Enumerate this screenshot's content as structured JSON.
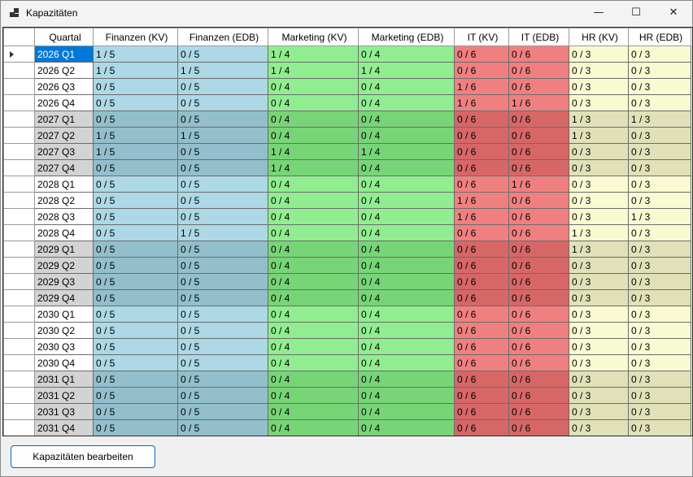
{
  "window": {
    "title": "Kapazitäten"
  },
  "titlebar": {
    "minimize_glyph": "—",
    "maximize_glyph": "☐",
    "close_glyph": "✕"
  },
  "grid": {
    "columns": [
      "Quartal",
      "Finanzen (KV)",
      "Finanzen (EDB)",
      "Marketing (KV)",
      "Marketing (EDB)",
      "IT (KV)",
      "IT (EDB)",
      "HR (KV)",
      "HR (EDB)"
    ],
    "colors": {
      "finanzen": "#add8e6",
      "finanzen_dark": "#93bfcc",
      "marketing": "#90ee90",
      "marketing_dark": "#77d577",
      "it": "#f08080",
      "it_dark": "#d76767",
      "hr": "#fafad2",
      "hr_dark": "#e1e1b9",
      "quartal_dark": "#d3d3d3",
      "selected": "#0078d7"
    },
    "selected_row": 0,
    "rows": [
      {
        "quartal": "2026 Q1",
        "cells": [
          "1 / 5",
          "0 / 5",
          "1 / 4",
          "0 / 4",
          "0 / 6",
          "0 / 6",
          "0 / 3",
          "0 / 3"
        ]
      },
      {
        "quartal": "2026 Q2",
        "cells": [
          "1 / 5",
          "1 / 5",
          "1 / 4",
          "1 / 4",
          "0 / 6",
          "0 / 6",
          "0 / 3",
          "0 / 3"
        ]
      },
      {
        "quartal": "2026 Q3",
        "cells": [
          "0 / 5",
          "0 / 5",
          "0 / 4",
          "0 / 4",
          "1 / 6",
          "0 / 6",
          "0 / 3",
          "0 / 3"
        ]
      },
      {
        "quartal": "2026 Q4",
        "cells": [
          "0 / 5",
          "0 / 5",
          "0 / 4",
          "0 / 4",
          "1 / 6",
          "1 / 6",
          "0 / 3",
          "0 / 3"
        ]
      },
      {
        "quartal": "2027 Q1",
        "cells": [
          "0 / 5",
          "0 / 5",
          "0 / 4",
          "0 / 4",
          "0 / 6",
          "0 / 6",
          "1 / 3",
          "1 / 3"
        ]
      },
      {
        "quartal": "2027 Q2",
        "cells": [
          "1 / 5",
          "1 / 5",
          "0 / 4",
          "0 / 4",
          "0 / 6",
          "0 / 6",
          "1 / 3",
          "0 / 3"
        ]
      },
      {
        "quartal": "2027 Q3",
        "cells": [
          "1 / 5",
          "0 / 5",
          "1 / 4",
          "1 / 4",
          "0 / 6",
          "0 / 6",
          "0 / 3",
          "0 / 3"
        ]
      },
      {
        "quartal": "2027 Q4",
        "cells": [
          "0 / 5",
          "0 / 5",
          "1 / 4",
          "0 / 4",
          "0 / 6",
          "0 / 6",
          "0 / 3",
          "0 / 3"
        ]
      },
      {
        "quartal": "2028 Q1",
        "cells": [
          "0 / 5",
          "0 / 5",
          "0 / 4",
          "0 / 4",
          "0 / 6",
          "1 / 6",
          "0 / 3",
          "0 / 3"
        ]
      },
      {
        "quartal": "2028 Q2",
        "cells": [
          "0 / 5",
          "0 / 5",
          "0 / 4",
          "0 / 4",
          "1 / 6",
          "0 / 6",
          "0 / 3",
          "0 / 3"
        ]
      },
      {
        "quartal": "2028 Q3",
        "cells": [
          "0 / 5",
          "0 / 5",
          "0 / 4",
          "0 / 4",
          "1 / 6",
          "0 / 6",
          "0 / 3",
          "1 / 3"
        ]
      },
      {
        "quartal": "2028 Q4",
        "cells": [
          "0 / 5",
          "1 / 5",
          "0 / 4",
          "0 / 4",
          "0 / 6",
          "0 / 6",
          "1 / 3",
          "0 / 3"
        ]
      },
      {
        "quartal": "2029 Q1",
        "cells": [
          "0 / 5",
          "0 / 5",
          "0 / 4",
          "0 / 4",
          "0 / 6",
          "0 / 6",
          "1 / 3",
          "0 / 3"
        ]
      },
      {
        "quartal": "2029 Q2",
        "cells": [
          "0 / 5",
          "0 / 5",
          "0 / 4",
          "0 / 4",
          "0 / 6",
          "0 / 6",
          "0 / 3",
          "0 / 3"
        ]
      },
      {
        "quartal": "2029 Q3",
        "cells": [
          "0 / 5",
          "0 / 5",
          "0 / 4",
          "0 / 4",
          "0 / 6",
          "0 / 6",
          "0 / 3",
          "0 / 3"
        ]
      },
      {
        "quartal": "2029 Q4",
        "cells": [
          "0 / 5",
          "0 / 5",
          "0 / 4",
          "0 / 4",
          "0 / 6",
          "0 / 6",
          "0 / 3",
          "0 / 3"
        ]
      },
      {
        "quartal": "2030 Q1",
        "cells": [
          "0 / 5",
          "0 / 5",
          "0 / 4",
          "0 / 4",
          "0 / 6",
          "0 / 6",
          "0 / 3",
          "0 / 3"
        ]
      },
      {
        "quartal": "2030 Q2",
        "cells": [
          "0 / 5",
          "0 / 5",
          "0 / 4",
          "0 / 4",
          "0 / 6",
          "0 / 6",
          "0 / 3",
          "0 / 3"
        ]
      },
      {
        "quartal": "2030 Q3",
        "cells": [
          "0 / 5",
          "0 / 5",
          "0 / 4",
          "0 / 4",
          "0 / 6",
          "0 / 6",
          "0 / 3",
          "0 / 3"
        ]
      },
      {
        "quartal": "2030 Q4",
        "cells": [
          "0 / 5",
          "0 / 5",
          "0 / 4",
          "0 / 4",
          "0 / 6",
          "0 / 6",
          "0 / 3",
          "0 / 3"
        ]
      },
      {
        "quartal": "2031 Q1",
        "cells": [
          "0 / 5",
          "0 / 5",
          "0 / 4",
          "0 / 4",
          "0 / 6",
          "0 / 6",
          "0 / 3",
          "0 / 3"
        ]
      },
      {
        "quartal": "2031 Q2",
        "cells": [
          "0 / 5",
          "0 / 5",
          "0 / 4",
          "0 / 4",
          "0 / 6",
          "0 / 6",
          "0 / 3",
          "0 / 3"
        ]
      },
      {
        "quartal": "2031 Q3",
        "cells": [
          "0 / 5",
          "0 / 5",
          "0 / 4",
          "0 / 4",
          "0 / 6",
          "0 / 6",
          "0 / 3",
          "0 / 3"
        ]
      },
      {
        "quartal": "2031 Q4",
        "cells": [
          "0 / 5",
          "0 / 5",
          "0 / 4",
          "0 / 4",
          "0 / 6",
          "0 / 6",
          "0 / 3",
          "0 / 3"
        ]
      }
    ]
  },
  "footer": {
    "edit_button_label": "Kapazitäten bearbeiten"
  }
}
